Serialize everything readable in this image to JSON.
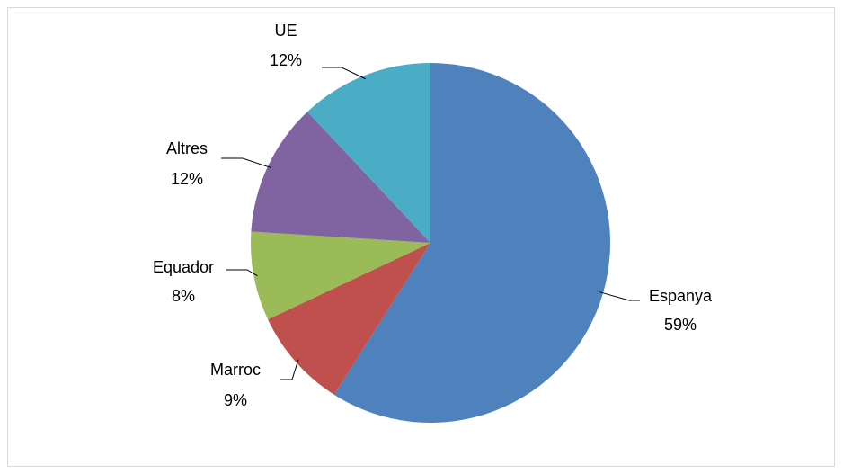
{
  "chart_data": {
    "type": "pie",
    "categories": [
      "Espanya",
      "Marroc",
      "Equador",
      "Altres",
      "UE"
    ],
    "values": [
      59,
      9,
      8,
      12,
      12
    ],
    "value_labels": [
      "59%",
      "9%",
      "8%",
      "12%",
      "12%"
    ],
    "colors": [
      "#4f81bd",
      "#c0504d",
      "#9bbb59",
      "#8064a2",
      "#4bacc6"
    ]
  }
}
